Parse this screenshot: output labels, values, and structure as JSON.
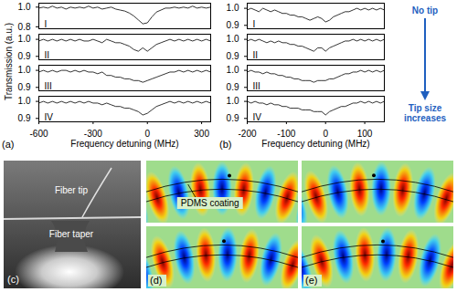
{
  "chart_data": [
    {
      "type": "line",
      "panel_label": "(a)",
      "xlabel": "Frequency detuning (MHz)",
      "ylabel": "Transmission (a.u.)",
      "color": "#000000",
      "xlim": [
        -600,
        350
      ],
      "xticks": [
        -600,
        -300,
        0,
        300
      ],
      "x": [
        -600,
        -575,
        -550,
        -525,
        -500,
        -475,
        -450,
        -425,
        -400,
        -375,
        -350,
        -325,
        -300,
        -275,
        -250,
        -225,
        -200,
        -175,
        -150,
        -125,
        -100,
        -75,
        -50,
        -25,
        0,
        25,
        50,
        75,
        100,
        125,
        150,
        175,
        200,
        225,
        250,
        275,
        300,
        325,
        350
      ],
      "panels": [
        {
          "name": "I",
          "ylim": [
            0.78,
            1.04
          ],
          "yticks": [
            {
              "value": 1,
              "label": "1.0"
            },
            0.8
          ],
          "values": [
            0.99,
            1.0,
            0.99,
            1.01,
            0.99,
            1.0,
            0.98,
            1.0,
            0.99,
            1.0,
            0.99,
            1.01,
            0.99,
            1.0,
            0.98,
            0.99,
            1.0,
            0.98,
            0.97,
            0.96,
            0.94,
            0.91,
            0.87,
            0.83,
            0.84,
            0.9,
            0.95,
            0.97,
            0.99,
            0.99,
            1.0,
            0.99,
            1.0,
            0.99,
            1.01,
            0.99,
            1.0,
            0.99,
            1.0
          ]
        },
        {
          "name": "II",
          "ylim": [
            0.88,
            1.03
          ],
          "yticks": [
            {
              "value": 1,
              "label": "1.0"
            },
            0.9
          ],
          "values": [
            0.99,
            1.0,
            0.99,
            1.0,
            0.99,
            1.0,
            0.99,
            1.0,
            0.99,
            1.0,
            0.99,
            0.99,
            1.0,
            0.99,
            0.98,
            1.0,
            0.99,
            0.98,
            0.98,
            0.97,
            0.96,
            0.94,
            0.93,
            0.95,
            0.93,
            0.95,
            0.97,
            0.98,
            0.99,
            1.0,
            0.99,
            1.0,
            0.99,
            1.0,
            0.99,
            1.0,
            0.99,
            1.0,
            0.99
          ]
        },
        {
          "name": "III",
          "ylim": [
            0.88,
            1.03
          ],
          "yticks": [
            {
              "value": 1,
              "label": "1.0"
            },
            0.9
          ],
          "values": [
            0.99,
            1.0,
            0.99,
            1.0,
            0.99,
            1.0,
            1.0,
            0.99,
            1.0,
            0.99,
            1.0,
            0.99,
            0.99,
            0.98,
            0.99,
            0.97,
            0.97,
            0.96,
            0.96,
            0.95,
            0.95,
            0.94,
            0.94,
            0.93,
            0.94,
            0.95,
            0.96,
            0.97,
            0.98,
            0.99,
            0.99,
            1.0,
            0.99,
            1.0,
            0.99,
            1.0,
            0.99,
            1.0,
            0.99
          ]
        },
        {
          "name": "IV",
          "ylim": [
            0.88,
            1.03
          ],
          "yticks": [
            {
              "value": 1,
              "label": "1.0"
            },
            0.9
          ],
          "values": [
            0.99,
            1.0,
            0.99,
            1.0,
            0.99,
            1.0,
            0.99,
            1.0,
            0.99,
            1.0,
            0.99,
            1.0,
            0.99,
            0.99,
            0.98,
            0.99,
            0.98,
            0.97,
            0.97,
            0.96,
            0.96,
            0.95,
            0.94,
            0.92,
            0.93,
            0.95,
            0.97,
            0.98,
            0.99,
            1.0,
            0.99,
            1.0,
            0.99,
            1.0,
            0.99,
            1.0,
            0.99,
            1.0,
            0.99
          ]
        }
      ]
    },
    {
      "type": "line",
      "panel_label": "(b)",
      "xlabel": "Frequency detuning (MHz)",
      "color": "#000000",
      "xlim": [
        -200,
        150
      ],
      "xticks": [
        -200,
        -100,
        0,
        100
      ],
      "x": [
        -200,
        -190,
        -180,
        -170,
        -160,
        -150,
        -140,
        -130,
        -120,
        -110,
        -100,
        -90,
        -80,
        -70,
        -60,
        -50,
        -40,
        -30,
        -20,
        -10,
        0,
        10,
        20,
        30,
        40,
        50,
        60,
        70,
        80,
        90,
        100,
        110,
        120,
        130,
        140,
        150
      ],
      "panels": [
        {
          "name": "I",
          "ylim": [
            0.88,
            1.03
          ],
          "yticks": [
            {
              "value": 1,
              "label": "1.0"
            },
            0.9
          ],
          "values": [
            0.99,
            1.0,
            0.99,
            0.98,
            1.0,
            0.99,
            0.98,
            0.99,
            0.98,
            0.97,
            0.97,
            0.96,
            0.96,
            0.95,
            0.95,
            0.94,
            0.93,
            0.94,
            0.95,
            0.94,
            0.92,
            0.93,
            0.95,
            0.96,
            0.97,
            0.98,
            0.98,
            0.99,
            1.0,
            0.99,
            1.0,
            0.99,
            1.0,
            0.99,
            1.0,
            0.99
          ]
        },
        {
          "name": "II",
          "ylim": [
            0.88,
            1.03
          ],
          "yticks": [
            {
              "value": 1,
              "label": "1.0"
            },
            0.9
          ],
          "values": [
            0.99,
            1.0,
            0.99,
            1.0,
            0.99,
            0.98,
            0.99,
            0.98,
            0.99,
            0.98,
            0.98,
            0.97,
            0.97,
            0.96,
            0.96,
            0.95,
            0.94,
            0.93,
            0.95,
            0.95,
            0.93,
            0.95,
            0.96,
            0.97,
            0.98,
            0.99,
            0.99,
            1.0,
            0.99,
            1.0,
            0.99,
            1.0,
            0.99,
            1.0,
            0.99,
            1.0
          ]
        },
        {
          "name": "III",
          "ylim": [
            0.88,
            1.03
          ],
          "yticks": [
            {
              "value": 1,
              "label": "1.0"
            },
            0.9
          ],
          "values": [
            0.99,
            1.0,
            0.99,
            0.99,
            0.98,
            0.99,
            0.98,
            0.98,
            0.97,
            0.97,
            0.96,
            0.96,
            0.95,
            0.95,
            0.94,
            0.94,
            0.94,
            0.93,
            0.94,
            0.94,
            0.94,
            0.95,
            0.95,
            0.96,
            0.97,
            0.98,
            0.98,
            0.99,
            0.99,
            1.0,
            0.99,
            1.0,
            0.99,
            1.0,
            0.99,
            1.0
          ]
        },
        {
          "name": "IV",
          "ylim": [
            0.88,
            1.03
          ],
          "yticks": [
            {
              "value": 1,
              "label": "1.0"
            },
            0.9
          ],
          "values": [
            1.0,
            0.99,
            1.0,
            0.99,
            0.99,
            0.98,
            0.99,
            0.98,
            0.98,
            0.97,
            0.97,
            0.96,
            0.96,
            0.96,
            0.95,
            0.95,
            0.95,
            0.94,
            0.94,
            0.94,
            0.92,
            0.94,
            0.95,
            0.96,
            0.97,
            0.97,
            0.98,
            0.99,
            0.99,
            1.0,
            0.99,
            1.0,
            0.99,
            1.0,
            0.99,
            1.0
          ]
        }
      ]
    }
  ],
  "annotations": {
    "top": "No tip",
    "bottom": "Tip size increases",
    "color": "#1f5fbf"
  },
  "photo": {
    "panel_label": "(c)",
    "labels": [
      "Fiber tip",
      "Fiber taper"
    ]
  },
  "field_maps": [
    {
      "panel_label": "(d)",
      "label": "PDMS coating"
    },
    {
      "panel_label": "(e)"
    }
  ]
}
